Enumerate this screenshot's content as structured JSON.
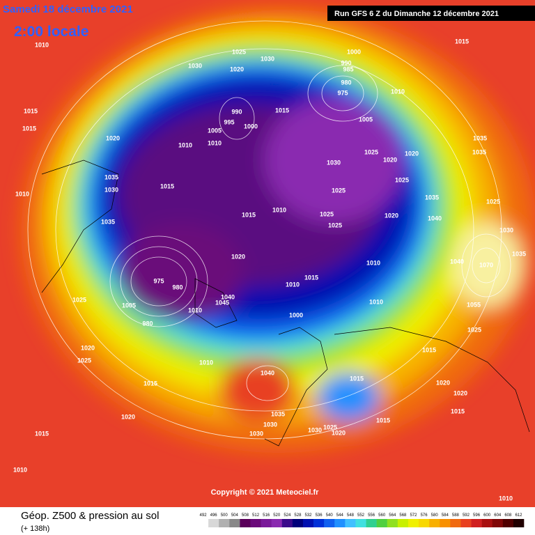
{
  "header": {
    "date": "Samedi 18 décembre 2021",
    "time": "2:00 locale",
    "run": "Run GFS 6 Z du Dimanche 12 décembre 2021"
  },
  "footer": {
    "copyright": "Copyright © 2021 Meteociel.fr",
    "product": "Géop. Z500 & pression au sol",
    "lead": "(+ 138h)"
  },
  "legend": {
    "values": [
      492,
      496,
      500,
      504,
      508,
      512,
      516,
      520,
      524,
      528,
      532,
      536,
      540,
      544,
      548,
      552,
      556,
      560,
      564,
      568,
      572,
      576,
      580,
      584,
      588,
      592,
      596,
      600,
      604,
      608,
      612
    ],
    "colors": [
      "#ffffff",
      "#d8d8d8",
      "#b0b0b0",
      "#888",
      "#5a005a",
      "#6a0a7a",
      "#7a1a9a",
      "#8a2ab0",
      "#3a0a8a",
      "#00007a",
      "#0010b0",
      "#0030d8",
      "#1060f0",
      "#2090ff",
      "#40c0ff",
      "#40e0e0",
      "#30d090",
      "#50d040",
      "#90e020",
      "#c8f000",
      "#f0f000",
      "#f8d800",
      "#f8b000",
      "#f89000",
      "#f06a10",
      "#e84020",
      "#d02020",
      "#a81010",
      "#800808",
      "#500000",
      "#200000"
    ]
  },
  "map": {
    "isobars": [
      "1010",
      "1025",
      "1030",
      "1000",
      "990",
      "985",
      "1015",
      "1030",
      "1020",
      "980",
      "975",
      "1010",
      "1015",
      "990",
      "995",
      "1000",
      "1015",
      "1005",
      "1015",
      "1020",
      "1005",
      "1010",
      "1010",
      "1035",
      "1035",
      "1025",
      "1020",
      "1030",
      "1020",
      "1035",
      "1030",
      "1015",
      "1010",
      "1025",
      "1025",
      "1035",
      "1015",
      "1010",
      "1025",
      "1020",
      "1025",
      "1040",
      "1035",
      "1025",
      "1030",
      "1020",
      "1010",
      "1040",
      "1035",
      "1070",
      "1015",
      "1010",
      "975",
      "980",
      "1040",
      "1045",
      "1025",
      "1010",
      "1005",
      "1000",
      "1010",
      "980",
      "1055",
      "1025",
      "1015",
      "1020",
      "1025",
      "1010",
      "1040",
      "1015",
      "1020",
      "1020",
      "1015",
      "1035",
      "1015",
      "1020",
      "1030",
      "1015",
      "1030",
      "1025",
      "1030",
      "1020",
      "1015",
      "1010",
      "1010"
    ]
  }
}
